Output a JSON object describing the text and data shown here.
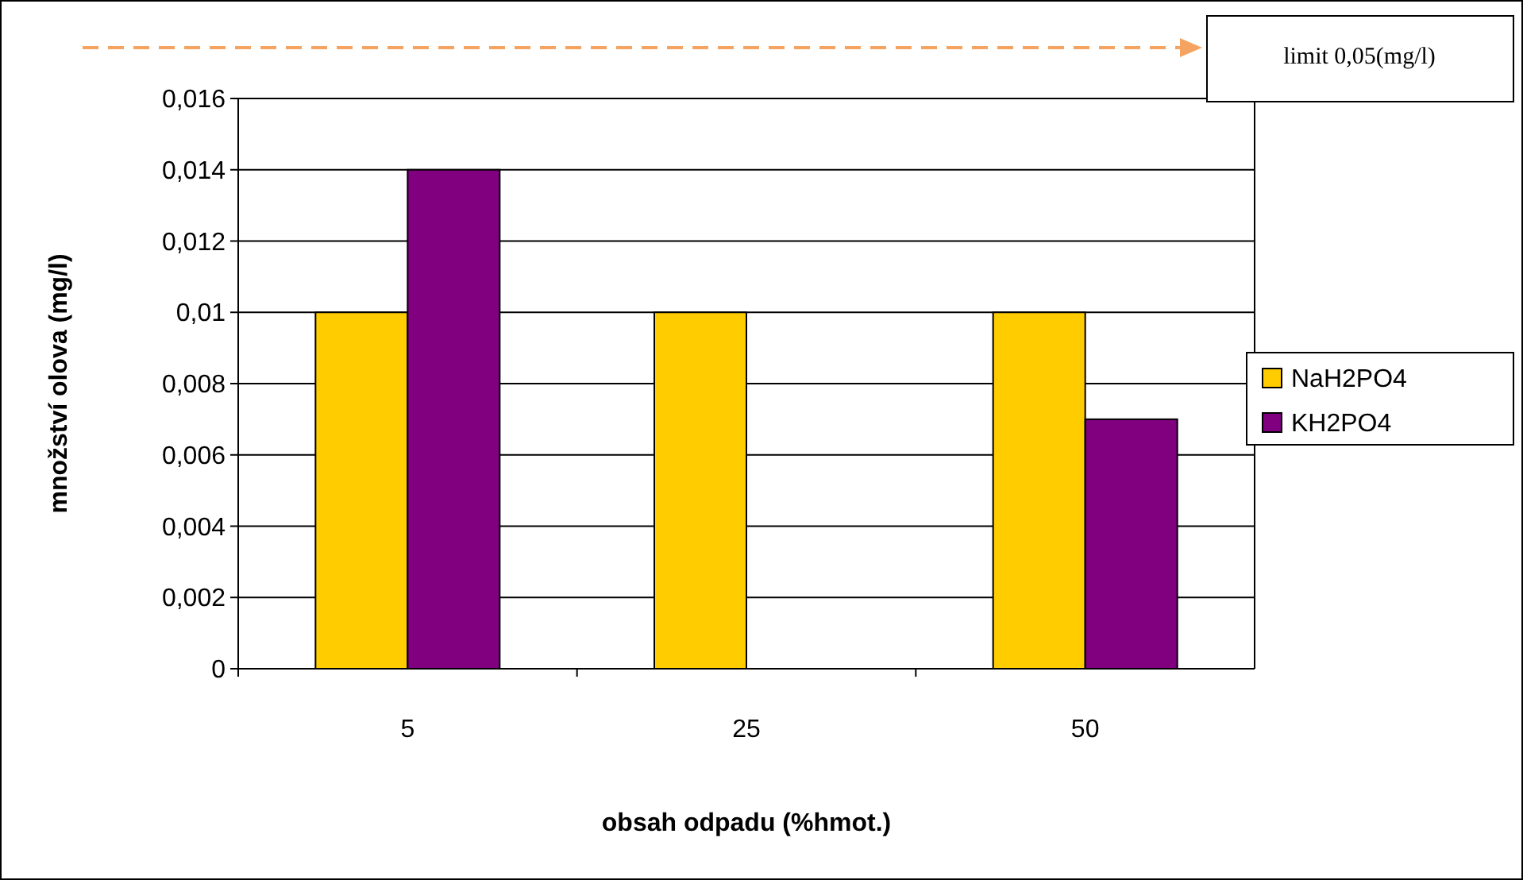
{
  "chart_data": {
    "type": "bar",
    "xlabel": "obsah odpadu (%hmot.)",
    "ylabel": "množství olova (mg/l)",
    "categories": [
      "5",
      "25",
      "50"
    ],
    "series": [
      {
        "name": "NaH2PO4",
        "color": "#ffcc00",
        "values": [
          0.01,
          0.01,
          0.01
        ]
      },
      {
        "name": "KH2PO4",
        "color": "#800080",
        "values": [
          0.014,
          0,
          0.007
        ]
      }
    ],
    "ylim": [
      0,
      0.016
    ],
    "yticks": [
      0,
      {
        "value": 0.002,
        "label": "0,002"
      },
      {
        "value": 0.004,
        "label": "0,004"
      },
      {
        "value": 0.006,
        "label": "0,006"
      },
      {
        "value": 0.008,
        "label": "0,008"
      },
      {
        "value": 0.01,
        "label": "0,01"
      },
      {
        "value": 0.012,
        "label": "0,012"
      },
      {
        "value": 0.014,
        "label": "0,014"
      },
      {
        "value": 0.016,
        "label": "0,016"
      }
    ],
    "grid": "y",
    "legend": "right",
    "annotations": [
      "limit 0,05(mg/l)"
    ]
  }
}
